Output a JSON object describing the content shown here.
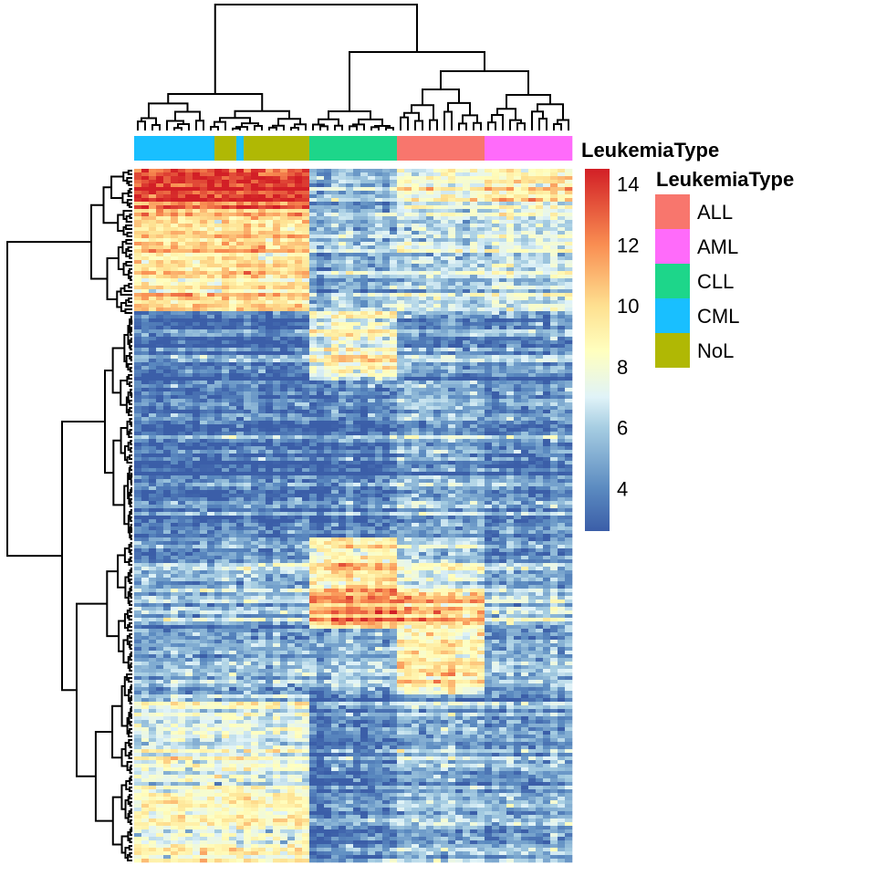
{
  "chart_data": {
    "type": "heatmap",
    "title": "",
    "annotation": {
      "title": "LeukemiaType",
      "categories": [
        "ALL",
        "AML",
        "CLL",
        "CML",
        "NoL"
      ],
      "colors": {
        "ALL": "#f8766d",
        "AML": "#ff6bfa",
        "CLL": "#1dd68a",
        "CML": "#19bfff",
        "NoL": "#b0b804"
      },
      "column_groups": [
        "CML",
        "CML",
        "CML",
        "CML",
        "CML",
        "CML",
        "CML",
        "CML",
        "CML",
        "CML",
        "CML",
        "NoL",
        "NoL",
        "NoL",
        "CML",
        "NoL",
        "NoL",
        "NoL",
        "NoL",
        "NoL",
        "NoL",
        "NoL",
        "NoL",
        "NoL",
        "CLL",
        "CLL",
        "CLL",
        "CLL",
        "CLL",
        "CLL",
        "CLL",
        "CLL",
        "CLL",
        "CLL",
        "CLL",
        "CLL",
        "ALL",
        "ALL",
        "ALL",
        "ALL",
        "ALL",
        "ALL",
        "ALL",
        "ALL",
        "ALL",
        "ALL",
        "ALL",
        "ALL",
        "AML",
        "AML",
        "AML",
        "AML",
        "AML",
        "AML",
        "AML",
        "AML",
        "AML",
        "AML",
        "AML",
        "AML"
      ]
    },
    "colorbar": {
      "title": "LeukemiaType",
      "ticks": [
        4,
        6,
        8,
        10,
        12,
        14
      ],
      "range": [
        2.6,
        14.5
      ],
      "stops": [
        [
          2.6,
          "#3b5ea8"
        ],
        [
          4,
          "#5b8ac0"
        ],
        [
          6,
          "#a6cde2"
        ],
        [
          7,
          "#e0f3f8"
        ],
        [
          8.5,
          "#ffffbf"
        ],
        [
          10,
          "#fee090"
        ],
        [
          12,
          "#f98e52"
        ],
        [
          14.5,
          "#d21f26"
        ]
      ]
    },
    "row_clusters": [
      {
        "rows": 11,
        "means": {
          "CML": 13.5,
          "NoL": 13.5,
          "CLL": 5,
          "ALL": 8,
          "AML": 9
        }
      },
      {
        "rows": 28,
        "means": {
          "CML": 9.5,
          "NoL": 9.5,
          "CLL": 5,
          "ALL": 6,
          "AML": 6.5
        }
      },
      {
        "rows": 19,
        "means": {
          "CML": 3,
          "NoL": 3,
          "CLL": 7.5,
          "ALL": 4,
          "AML": 4
        }
      },
      {
        "rows": 43,
        "means": {
          "CML": 3.3,
          "NoL": 3.5,
          "CLL": 3.3,
          "ALL": 5,
          "AML": 4
        }
      },
      {
        "rows": 15,
        "means": {
          "CML": 5,
          "NoL": 5.5,
          "CLL": 9.5,
          "ALL": 7,
          "AML": 5
        }
      },
      {
        "rows": 10,
        "means": {
          "CML": 5,
          "NoL": 5,
          "CLL": 11,
          "ALL": 10,
          "AML": 6
        }
      },
      {
        "rows": 18,
        "means": {
          "CML": 5,
          "NoL": 5,
          "CLL": 5,
          "ALL": 9,
          "AML": 5
        }
      },
      {
        "rows": 25,
        "means": {
          "CML": 7,
          "NoL": 7,
          "CLL": 3.5,
          "ALL": 5,
          "AML": 4.5
        }
      },
      {
        "rows": 21,
        "means": {
          "CML": 8.5,
          "NoL": 8.5,
          "CLL": 4,
          "ALL": 5.5,
          "AML": 5
        }
      }
    ],
    "dendrograms": {
      "rows": true,
      "columns": true
    }
  }
}
